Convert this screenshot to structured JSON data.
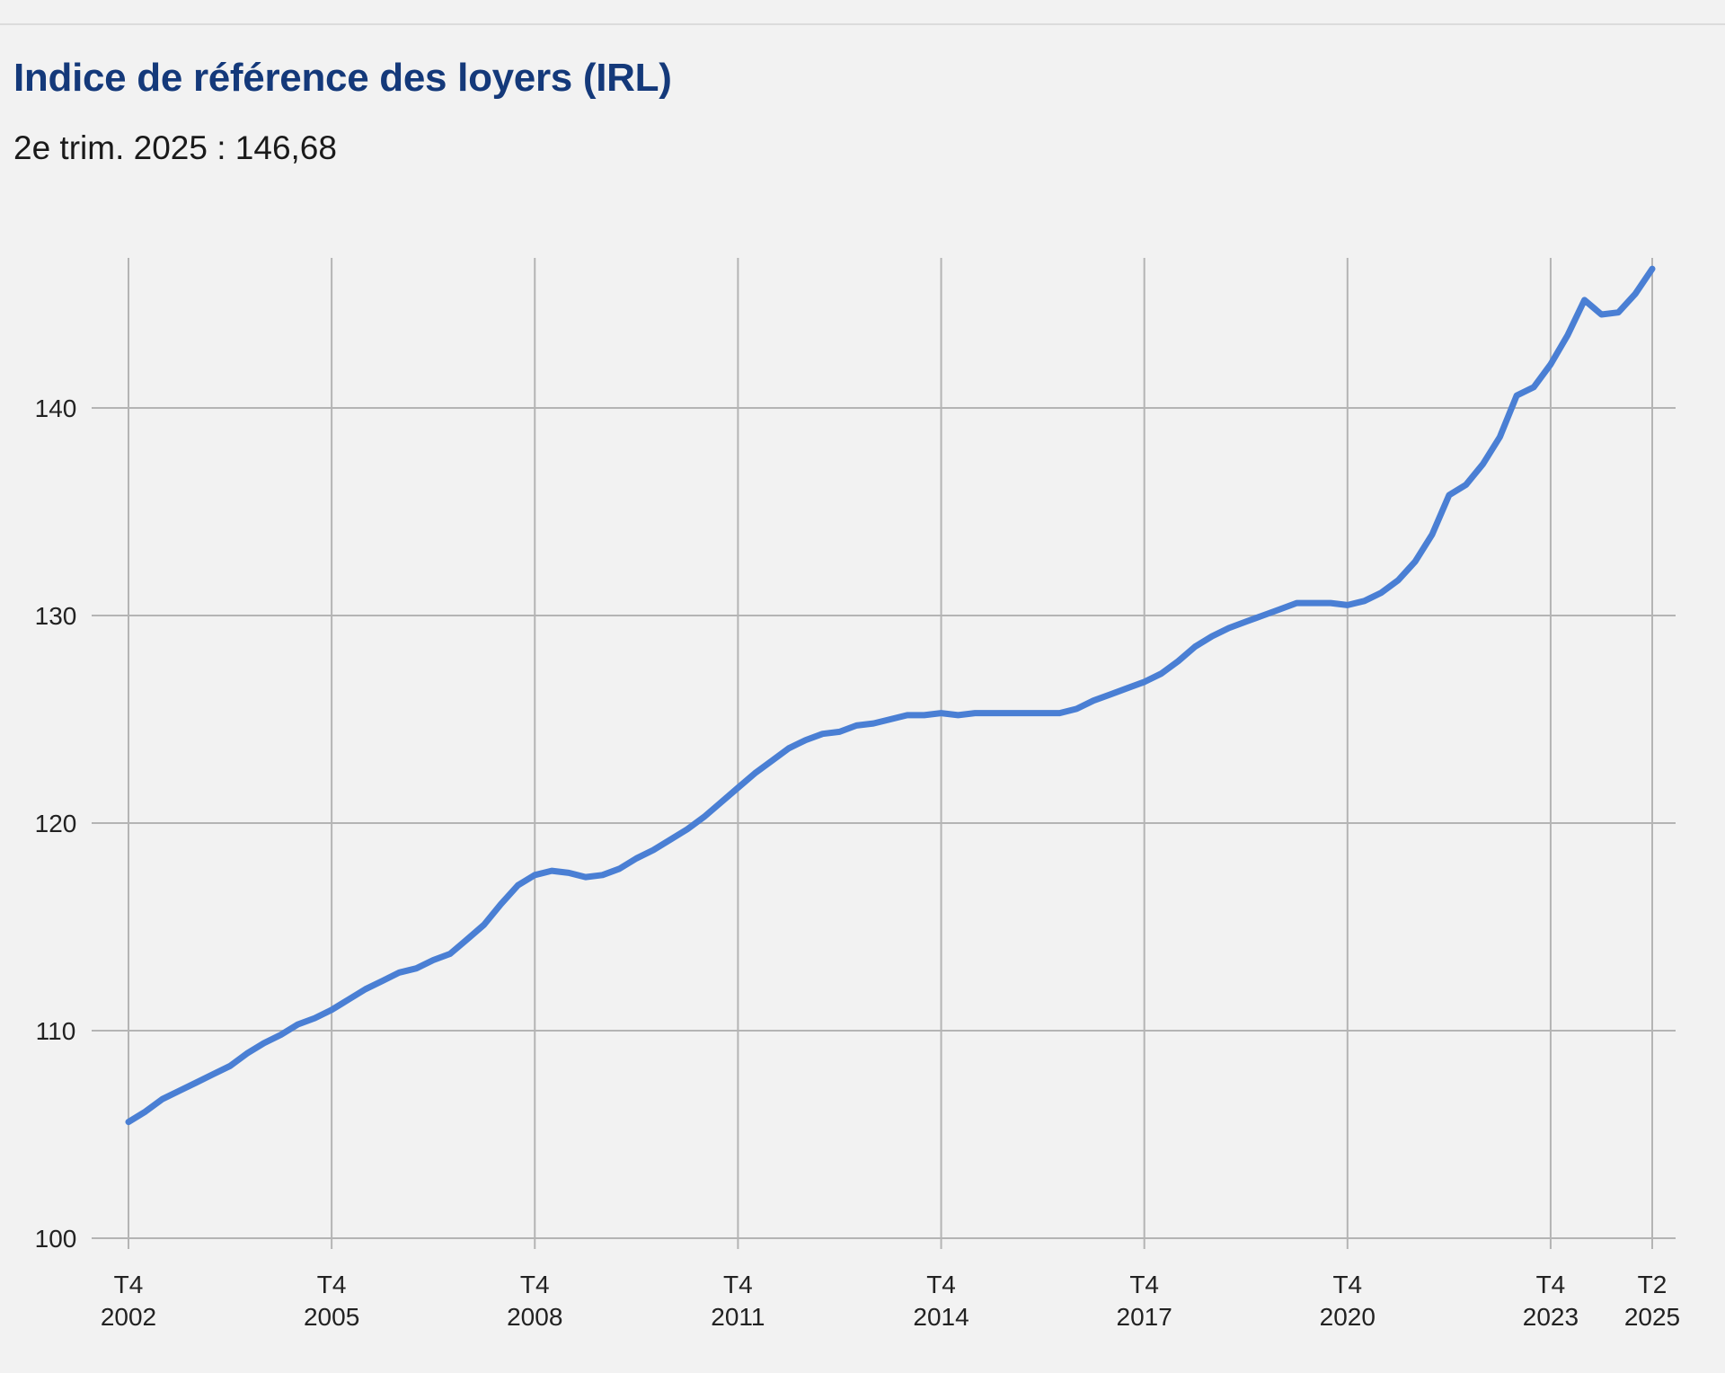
{
  "header": {
    "title": "Indice de référence des loyers (IRL)",
    "subtitle": "2e trim. 2025 : 146,68"
  },
  "chart_data": {
    "type": "line",
    "title": "Indice de référence des loyers (IRL)",
    "xlabel": "",
    "ylabel": "",
    "ylim": [
      100,
      147.2
    ],
    "yticks": [
      100,
      110,
      120,
      130,
      140
    ],
    "grid": true,
    "line_color": "#4a7fd4",
    "xticks": [
      {
        "index": 0,
        "q": "T4",
        "year": "2002"
      },
      {
        "index": 12,
        "q": "T4",
        "year": "2005"
      },
      {
        "index": 24,
        "q": "T4",
        "year": "2008"
      },
      {
        "index": 36,
        "q": "T4",
        "year": "2011"
      },
      {
        "index": 48,
        "q": "T4",
        "year": "2014"
      },
      {
        "index": 60,
        "q": "T4",
        "year": "2017"
      },
      {
        "index": 72,
        "q": "T4",
        "year": "2020"
      },
      {
        "index": 84,
        "q": "T4",
        "year": "2023"
      },
      {
        "index": 90,
        "q": "T2",
        "year": "2025"
      }
    ],
    "series": [
      {
        "name": "IRL",
        "start": "T4 2002",
        "frequency": "quarterly",
        "values": [
          105.6,
          106.1,
          106.7,
          107.1,
          107.5,
          107.9,
          108.3,
          108.9,
          109.4,
          109.8,
          110.3,
          110.6,
          111.0,
          111.5,
          112.0,
          112.4,
          112.8,
          113.0,
          113.4,
          113.7,
          114.4,
          115.1,
          116.1,
          117.0,
          117.5,
          117.7,
          117.6,
          117.4,
          117.5,
          117.8,
          118.3,
          118.7,
          119.2,
          119.7,
          120.3,
          121.0,
          121.7,
          122.4,
          123.0,
          123.6,
          124.0,
          124.3,
          124.4,
          124.7,
          124.8,
          125.0,
          125.2,
          125.2,
          125.3,
          125.2,
          125.3,
          125.3,
          125.3,
          125.3,
          125.3,
          125.3,
          125.5,
          125.9,
          126.2,
          126.5,
          126.8,
          127.2,
          127.8,
          128.5,
          129.0,
          129.4,
          129.7,
          130.0,
          130.3,
          130.6,
          130.6,
          130.6,
          130.5,
          130.7,
          131.1,
          131.7,
          132.6,
          133.9,
          135.8,
          136.3,
          137.3,
          138.6,
          140.6,
          141.0,
          142.1,
          143.5,
          145.2,
          144.5,
          144.6,
          145.5,
          146.7
        ]
      }
    ]
  }
}
